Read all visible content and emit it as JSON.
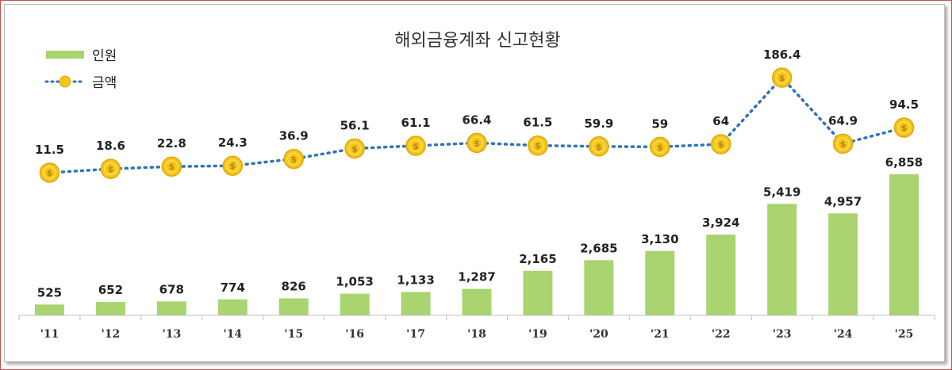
{
  "chart_data": {
    "type": "bar+line",
    "title": "해외금융계좌 신고현황",
    "categories": [
      "'11",
      "'12",
      "'13",
      "'14",
      "'15",
      "'16",
      "'17",
      "'18",
      "'19",
      "'20",
      "'21",
      "'22",
      "'23",
      "'24",
      "'25"
    ],
    "series": [
      {
        "name": "인원",
        "type": "bar",
        "values": [
          525,
          652,
          678,
          774,
          826,
          1053,
          1133,
          1287,
          2165,
          2685,
          3130,
          3924,
          5419,
          4957,
          6858
        ],
        "labels": [
          "525",
          "652",
          "678",
          "774",
          "826",
          "1,053",
          "1,133",
          "1,287",
          "2,165",
          "2,685",
          "3,130",
          "3,924",
          "5,419",
          "4,957",
          "6,858"
        ]
      },
      {
        "name": "금액",
        "type": "line",
        "values": [
          11.5,
          18.6,
          22.8,
          24.3,
          36.9,
          56.1,
          61.1,
          66.4,
          61.5,
          59.9,
          59,
          64,
          186.4,
          64.9,
          94.5
        ],
        "labels": [
          "11.5",
          "18.6",
          "22.8",
          "24.3",
          "36.9",
          "56.1",
          "61.1",
          "66.4",
          "61.5",
          "59.9",
          "59",
          "64",
          "186.4",
          "64.9",
          "94.5"
        ]
      }
    ],
    "legend": "top-left",
    "grid": false,
    "colors": {
      "bar": "#a9d46f",
      "line": "#2e75b6",
      "marker": "#f5c518"
    }
  }
}
